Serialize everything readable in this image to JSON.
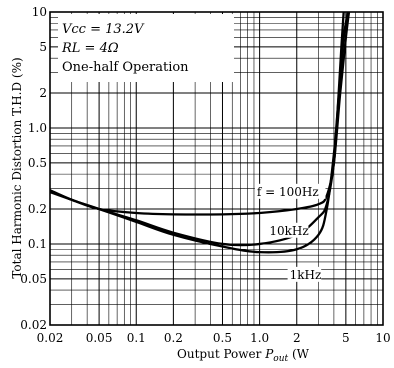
{
  "chart_data": {
    "type": "line",
    "title": "",
    "xlabel": "Output Power P_out (W)",
    "xlabel_parts": {
      "main": "Output Power ",
      "var": "P",
      "sub": "out",
      "unit": " (W"
    },
    "ylabel": "Total Harmonic Distortion T.H.D (%)",
    "x_scale": "log",
    "y_scale": "log",
    "xlim": [
      0.02,
      10
    ],
    "ylim": [
      0.02,
      10
    ],
    "grid": true,
    "x_tick_labels": [
      {
        "v": 0.02,
        "t": "0.02"
      },
      {
        "v": 0.05,
        "t": "0.05"
      },
      {
        "v": 0.1,
        "t": "0.1"
      },
      {
        "v": 0.2,
        "t": "0.2"
      },
      {
        "v": 0.5,
        "t": "0.5"
      },
      {
        "v": 1,
        "t": "1.0"
      },
      {
        "v": 2,
        "t": "2"
      },
      {
        "v": 5,
        "t": "5"
      },
      {
        "v": 10,
        "t": "10"
      }
    ],
    "y_tick_labels": [
      {
        "v": 10,
        "t": "10"
      },
      {
        "v": 5,
        "t": "5"
      },
      {
        "v": 2,
        "t": "2"
      },
      {
        "v": 1,
        "t": "1.0"
      },
      {
        "v": 0.5,
        "t": "0.5"
      },
      {
        "v": 0.2,
        "t": "0.2"
      },
      {
        "v": 0.1,
        "t": "0.1"
      },
      {
        "v": 0.05,
        "t": "0.05"
      },
      {
        "v": 0.02,
        "t": "0.02"
      }
    ],
    "conditions": [
      "Vcc = 13.2V",
      "RL = 4Ω",
      "One-half Operation"
    ],
    "series": [
      {
        "name": "f = 100Hz",
        "points": [
          [
            0.02,
            0.28
          ],
          [
            0.03,
            0.24
          ],
          [
            0.05,
            0.2
          ],
          [
            0.1,
            0.185
          ],
          [
            0.2,
            0.18
          ],
          [
            0.5,
            0.18
          ],
          [
            1,
            0.185
          ],
          [
            2,
            0.2
          ],
          [
            3,
            0.22
          ],
          [
            3.5,
            0.26
          ],
          [
            4,
            0.5
          ],
          [
            4.3,
            1.5
          ],
          [
            4.6,
            5
          ],
          [
            4.8,
            10
          ]
        ]
      },
      {
        "name": "10kHz",
        "points": [
          [
            0.02,
            0.29
          ],
          [
            0.03,
            0.24
          ],
          [
            0.05,
            0.2
          ],
          [
            0.1,
            0.16
          ],
          [
            0.2,
            0.125
          ],
          [
            0.5,
            0.1
          ],
          [
            1,
            0.1
          ],
          [
            2,
            0.12
          ],
          [
            3,
            0.17
          ],
          [
            3.5,
            0.22
          ],
          [
            4,
            0.5
          ],
          [
            4.5,
            2
          ],
          [
            5,
            6
          ],
          [
            5.3,
            10
          ]
        ]
      },
      {
        "name": "1kHz",
        "points": [
          [
            0.02,
            0.29
          ],
          [
            0.03,
            0.24
          ],
          [
            0.05,
            0.2
          ],
          [
            0.1,
            0.155
          ],
          [
            0.2,
            0.12
          ],
          [
            0.5,
            0.095
          ],
          [
            1,
            0.085
          ],
          [
            2,
            0.09
          ],
          [
            3,
            0.12
          ],
          [
            3.5,
            0.2
          ],
          [
            4,
            0.6
          ],
          [
            4.4,
            2
          ],
          [
            4.8,
            6
          ],
          [
            5.2,
            10
          ]
        ]
      }
    ],
    "annotations": [
      {
        "series": "f = 100Hz",
        "text": "f = 100Hz",
        "x": 0.95,
        "y": 0.26
      },
      {
        "series": "10kHz",
        "text": "10kHz",
        "x": 1.2,
        "y": 0.12
      },
      {
        "series": "1kHz",
        "text": "1kHz",
        "x": 1.75,
        "y": 0.05
      }
    ]
  }
}
